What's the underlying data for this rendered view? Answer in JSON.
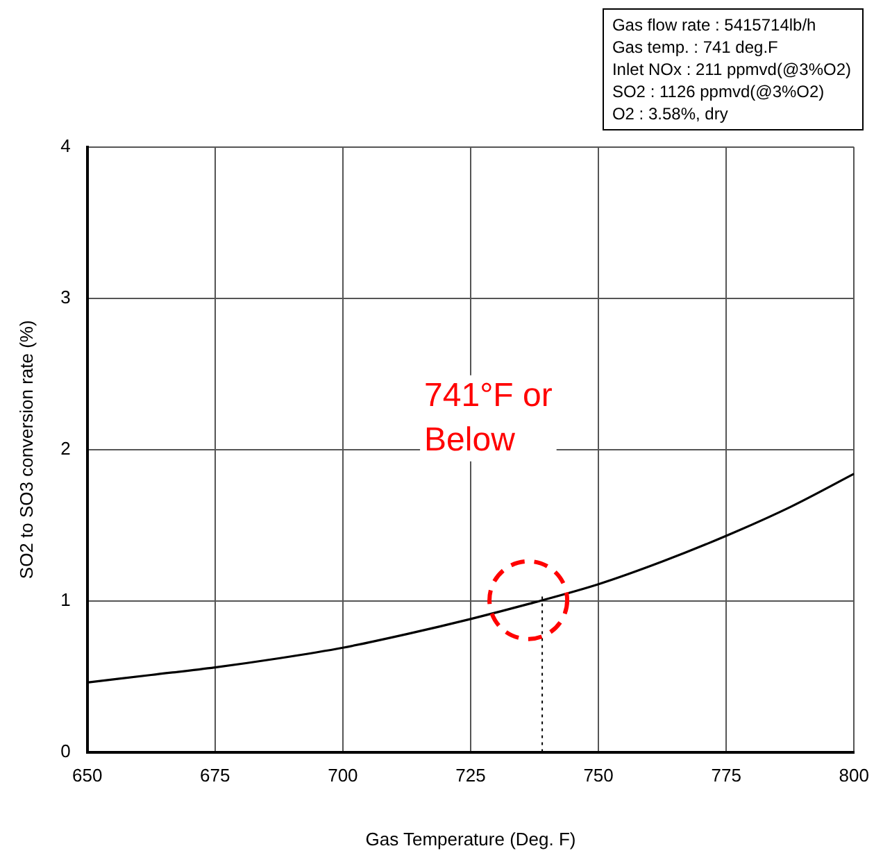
{
  "chart_data": {
    "type": "line",
    "xlabel": "Gas Temperature (Deg. F)",
    "ylabel": "SO2 to SO3 conversion rate (%)",
    "x": [
      650,
      662.5,
      675,
      687.5,
      700,
      712.5,
      725,
      737.5,
      750,
      762.5,
      775,
      787.5,
      800
    ],
    "values": [
      0.46,
      0.51,
      0.56,
      0.62,
      0.69,
      0.78,
      0.88,
      0.99,
      1.11,
      1.26,
      1.43,
      1.62,
      1.84
    ],
    "color": "#000000",
    "marker": "none",
    "line_style": "solid",
    "xlim": [
      650,
      800
    ],
    "xticks": [
      650,
      675,
      700,
      725,
      750,
      775,
      800
    ],
    "ylim": [
      0,
      4
    ],
    "yticks": [
      0,
      1,
      2,
      3,
      4
    ],
    "grid": true,
    "legend": false,
    "ref_lines": [
      {
        "axis": "x",
        "value": 739,
        "color": "#000000",
        "line_style": "dotted"
      }
    ],
    "annotations": [
      "Gas flow rate : 5415714lb/h",
      "Gas temp. : 741 deg.F",
      "Inlet NOx :  211 ppmvd(@3%O2)",
      "SO2 :  1126 ppmvd(@3%O2)",
      "O2 :  3.58%, dry",
      "741°F or Below"
    ]
  }
}
